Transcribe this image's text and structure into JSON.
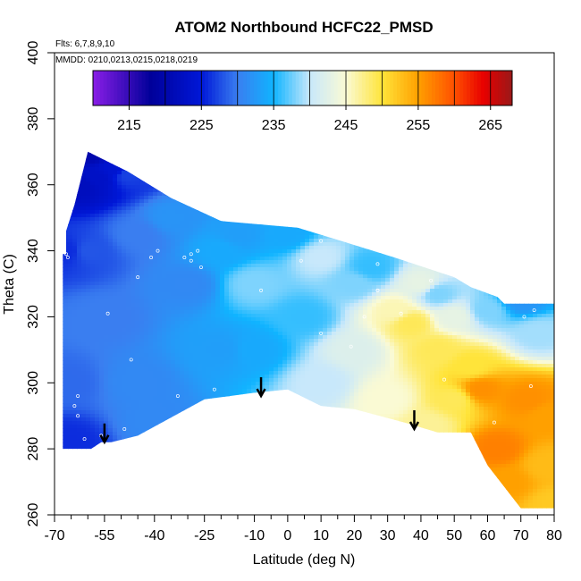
{
  "chart_data": {
    "type": "heatmap",
    "title": "ATOM2 Northbound HCFC22_PMSD",
    "flights_note": "Flts: 6,7,8,9,10",
    "dates_note": "MMDD: 0210,0213,0215,0218,0219",
    "xlabel": "Latitude (deg N)",
    "ylabel": "Theta (C)",
    "xlim": [
      -70,
      80
    ],
    "ylim": [
      260,
      400
    ],
    "x_ticks": [
      -70,
      -55,
      -40,
      -25,
      -10,
      0,
      10,
      20,
      30,
      40,
      50,
      60,
      70,
      80
    ],
    "x_tick_labels": [
      "-70",
      "-55",
      "-40",
      "-25",
      "-10",
      "0",
      "10",
      "20",
      "30",
      "40",
      "50",
      "60",
      "70",
      "80"
    ],
    "x_minor_ticks": [
      -65,
      -60,
      -50,
      -45,
      -35,
      -30,
      -20,
      -15,
      -5,
      5,
      15,
      25,
      35,
      45,
      55,
      65,
      75
    ],
    "y_ticks": [
      260,
      280,
      300,
      320,
      340,
      360,
      380,
      400
    ],
    "y_tick_labels": [
      "260",
      "280",
      "300",
      "320",
      "340",
      "360",
      "380",
      "400"
    ],
    "colorbar": {
      "range": [
        210,
        268
      ],
      "tick_values": [
        215,
        225,
        235,
        245,
        255,
        265
      ],
      "tick_labels": [
        "215",
        "225",
        "235",
        "245",
        "255",
        "265"
      ],
      "boundaries": [
        210,
        215,
        220,
        225,
        230,
        235,
        240,
        245,
        250,
        255,
        260,
        265,
        268
      ],
      "color_stops": [
        {
          "value": 210,
          "color": "#8a1ee6"
        },
        {
          "value": 218,
          "color": "#00009a"
        },
        {
          "value": 225,
          "color": "#0018d8"
        },
        {
          "value": 230,
          "color": "#3a7ef0"
        },
        {
          "value": 235,
          "color": "#10b4ff"
        },
        {
          "value": 240,
          "color": "#c8e8fb"
        },
        {
          "value": 245,
          "color": "#fafad4"
        },
        {
          "value": 250,
          "color": "#ffe43a"
        },
        {
          "value": 255,
          "color": "#ffa000"
        },
        {
          "value": 260,
          "color": "#ff5000"
        },
        {
          "value": 264,
          "color": "#e80000"
        },
        {
          "value": 268,
          "color": "#9a1818"
        }
      ]
    },
    "field_polygon": {
      "lat": [
        -67.5,
        -66.5,
        -66.5,
        -64,
        -60,
        -48,
        -35,
        -20,
        3,
        16,
        32,
        50,
        55,
        63,
        65,
        80,
        80,
        70,
        60,
        55,
        45,
        35,
        20,
        10,
        0,
        -10,
        -25,
        -45,
        -53,
        -56,
        -59,
        -60,
        -62,
        -65,
        -66.5,
        -67.5
      ],
      "theta": [
        339,
        339,
        346,
        354,
        370,
        364,
        356,
        349,
        347,
        343,
        338,
        332,
        329,
        326,
        324,
        324,
        262,
        262,
        275,
        285,
        285,
        288,
        292,
        293,
        298,
        297,
        295,
        284,
        282,
        282,
        280,
        280,
        280,
        280,
        280,
        280
      ]
    },
    "field_samples": [
      {
        "lat": -62,
        "theta": 360,
        "value": 222
      },
      {
        "lat": -57,
        "theta": 362,
        "value": 223
      },
      {
        "lat": -58,
        "theta": 370,
        "value": 220
      },
      {
        "lat": -52,
        "theta": 365,
        "value": 224
      },
      {
        "lat": -48,
        "theta": 363,
        "value": 227
      },
      {
        "lat": -66,
        "theta": 340,
        "value": 226
      },
      {
        "lat": -60,
        "theta": 340,
        "value": 228
      },
      {
        "lat": -66,
        "theta": 300,
        "value": 229
      },
      {
        "lat": -66,
        "theta": 282,
        "value": 226
      },
      {
        "lat": -55,
        "theta": 320,
        "value": 230
      },
      {
        "lat": -45,
        "theta": 345,
        "value": 230
      },
      {
        "lat": -45,
        "theta": 300,
        "value": 231
      },
      {
        "lat": -35,
        "theta": 350,
        "value": 232
      },
      {
        "lat": -30,
        "theta": 330,
        "value": 231
      },
      {
        "lat": -40,
        "theta": 288,
        "value": 231
      },
      {
        "lat": -20,
        "theta": 340,
        "value": 234
      },
      {
        "lat": -20,
        "theta": 310,
        "value": 233
      },
      {
        "lat": -15,
        "theta": 345,
        "value": 233
      },
      {
        "lat": -10,
        "theta": 330,
        "value": 238
      },
      {
        "lat": -10,
        "theta": 310,
        "value": 234
      },
      {
        "lat": 0,
        "theta": 345,
        "value": 234
      },
      {
        "lat": 5,
        "theta": 320,
        "value": 236
      },
      {
        "lat": 10,
        "theta": 300,
        "value": 240
      },
      {
        "lat": 10,
        "theta": 338,
        "value": 240
      },
      {
        "lat": 20,
        "theta": 330,
        "value": 238
      },
      {
        "lat": 20,
        "theta": 310,
        "value": 242
      },
      {
        "lat": 25,
        "theta": 335,
        "value": 236
      },
      {
        "lat": 30,
        "theta": 295,
        "value": 245
      },
      {
        "lat": 32,
        "theta": 322,
        "value": 246
      },
      {
        "lat": 37,
        "theta": 318,
        "value": 249
      },
      {
        "lat": 40,
        "theta": 330,
        "value": 243
      },
      {
        "lat": 45,
        "theta": 327,
        "value": 238
      },
      {
        "lat": 45,
        "theta": 310,
        "value": 249
      },
      {
        "lat": 50,
        "theta": 320,
        "value": 243
      },
      {
        "lat": 50,
        "theta": 295,
        "value": 249
      },
      {
        "lat": 55,
        "theta": 305,
        "value": 250
      },
      {
        "lat": 60,
        "theta": 322,
        "value": 238
      },
      {
        "lat": 58,
        "theta": 298,
        "value": 256
      },
      {
        "lat": 63,
        "theta": 280,
        "value": 257
      },
      {
        "lat": 66,
        "theta": 270,
        "value": 255
      },
      {
        "lat": 70,
        "theta": 325,
        "value": 232
      },
      {
        "lat": 75,
        "theta": 315,
        "value": 239
      },
      {
        "lat": 72,
        "theta": 295,
        "value": 256
      },
      {
        "lat": 78,
        "theta": 290,
        "value": 255
      },
      {
        "lat": 78,
        "theta": 275,
        "value": 253
      },
      {
        "lat": 80,
        "theta": 263,
        "value": 252
      },
      {
        "lat": 42,
        "theta": 287,
        "value": 247
      }
    ],
    "sample_points": [
      {
        "lat": -57,
        "theta": 370
      },
      {
        "lat": -55,
        "theta": 369
      },
      {
        "lat": -66,
        "theta": 338
      },
      {
        "lat": -66.5,
        "theta": 339
      },
      {
        "lat": -63,
        "theta": 296
      },
      {
        "lat": -64,
        "theta": 293
      },
      {
        "lat": -63,
        "theta": 290
      },
      {
        "lat": -61,
        "theta": 283
      },
      {
        "lat": -56,
        "theta": 284
      },
      {
        "lat": -49,
        "theta": 286
      },
      {
        "lat": -54,
        "theta": 321
      },
      {
        "lat": -47,
        "theta": 307
      },
      {
        "lat": -45,
        "theta": 332
      },
      {
        "lat": -41,
        "theta": 338
      },
      {
        "lat": -39,
        "theta": 340
      },
      {
        "lat": -31,
        "theta": 338
      },
      {
        "lat": -29,
        "theta": 339
      },
      {
        "lat": -27,
        "theta": 340
      },
      {
        "lat": -29,
        "theta": 337
      },
      {
        "lat": -26,
        "theta": 335
      },
      {
        "lat": -22,
        "theta": 298
      },
      {
        "lat": -33,
        "theta": 296
      },
      {
        "lat": -8,
        "theta": 328
      },
      {
        "lat": 4,
        "theta": 337
      },
      {
        "lat": 10,
        "theta": 343
      },
      {
        "lat": 10,
        "theta": 315
      },
      {
        "lat": 19,
        "theta": 311
      },
      {
        "lat": 23,
        "theta": 320
      },
      {
        "lat": 27,
        "theta": 328
      },
      {
        "lat": 27,
        "theta": 336
      },
      {
        "lat": 34,
        "theta": 321
      },
      {
        "lat": 43,
        "theta": 331
      },
      {
        "lat": 47,
        "theta": 301
      },
      {
        "lat": 62,
        "theta": 288
      },
      {
        "lat": 71,
        "theta": 320
      },
      {
        "lat": 73,
        "theta": 299
      },
      {
        "lat": 74,
        "theta": 322
      }
    ],
    "arrows_lat": [
      -55,
      -8,
      38
    ],
    "arrows_theta_tip": [
      282,
      296,
      286
    ]
  }
}
